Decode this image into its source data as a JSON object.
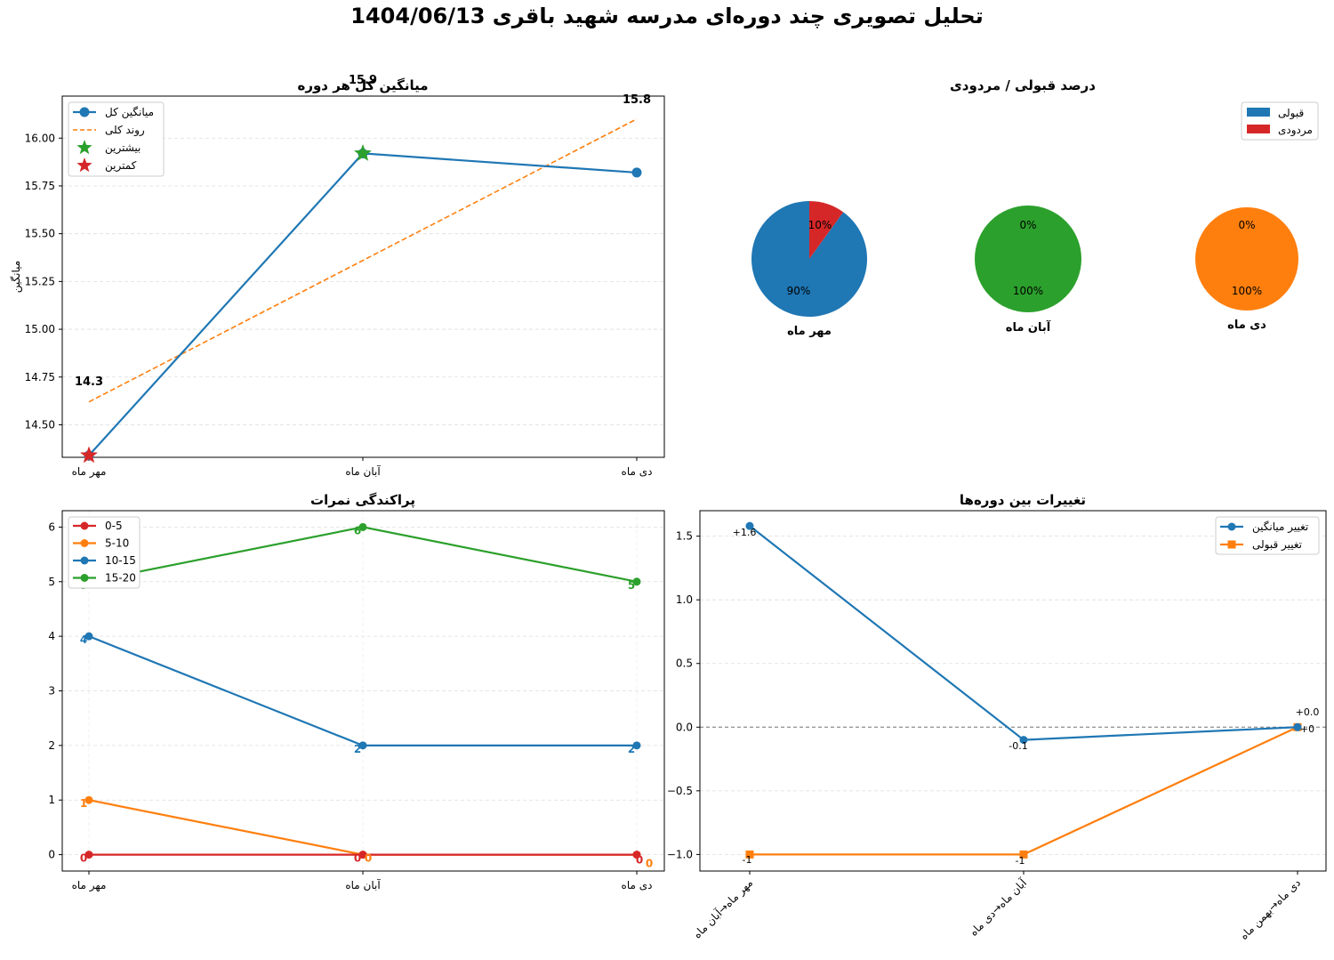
{
  "title": "تحلیل تصویری چند دوره‌ای مدرسه شهید باقری  1404/06/13",
  "colors": {
    "blue": "#1f77b4",
    "orange": "#ff7f0e",
    "green": "#2ca02c",
    "red": "#d62728",
    "grid": "#dddddd"
  },
  "chart_data": [
    {
      "type": "line",
      "title": "میانگین کل هر دوره",
      "ylabel": "میانگین",
      "xlabel": "",
      "categories": [
        "مهر ماه",
        "آبان ماه",
        "دی ماه"
      ],
      "ylim": [
        14.33,
        16.22
      ],
      "yticks": [
        "14.50",
        "14.75",
        "15.00",
        "15.25",
        "15.50",
        "15.75",
        "16.00"
      ],
      "series": [
        {
          "name": "میانگین کل",
          "values": [
            14.34,
            15.92,
            15.82
          ],
          "color": "#1f77b4"
        },
        {
          "name": "روند کلی",
          "values": [
            14.62,
            15.36,
            16.1
          ],
          "color": "#ff7f0e",
          "style": "dashed"
        }
      ],
      "markers": [
        {
          "name": "بیشترین",
          "index": 1,
          "value": 15.92,
          "color": "#2ca02c"
        },
        {
          "name": "کمترین",
          "index": 0,
          "value": 14.34,
          "color": "#d62728"
        }
      ],
      "data_labels": [
        "14.3",
        "15.9",
        "15.8"
      ],
      "grid": true,
      "legend": "top-left"
    },
    {
      "type": "pie",
      "title": "درصد قبولی /  مردودی",
      "legend_entries": [
        {
          "name": "قبولی",
          "color": "#1f77b4"
        },
        {
          "name": "مردودی",
          "color": "#d62728"
        }
      ],
      "legend": "top-right",
      "pies": [
        {
          "label": "مهر ماه",
          "slices": [
            {
              "name": "قبولی",
              "value": 90,
              "label": "90%",
              "color": "#1f77b4"
            },
            {
              "name": "مردودی",
              "value": 10,
              "label": "10%",
              "color": "#d62728"
            }
          ]
        },
        {
          "label": "آبان ماه",
          "slices": [
            {
              "name": "قبولی",
              "value": 100,
              "label": "100%",
              "color": "#2ca02c"
            },
            {
              "name": "مردودی",
              "value": 0,
              "label": "0%",
              "color": "#2ca02c"
            }
          ]
        },
        {
          "label": "دی ماه",
          "slices": [
            {
              "name": "قبولی",
              "value": 100,
              "label": "100%",
              "color": "#ff7f0e"
            },
            {
              "name": "مردودی",
              "value": 0,
              "label": "0%",
              "color": "#ff7f0e"
            }
          ]
        }
      ]
    },
    {
      "type": "line",
      "title": "پراکندگی نمرات",
      "categories": [
        "مهر ماه",
        "آبان ماه",
        "دی ماه"
      ],
      "ylim": [
        -0.3,
        6.3
      ],
      "yticks": [
        "0",
        "1",
        "2",
        "3",
        "4",
        "5",
        "6"
      ],
      "series": [
        {
          "name": "0-5",
          "values": [
            0,
            0,
            0
          ],
          "color": "#d62728",
          "labels": [
            "0",
            "0",
            "0"
          ]
        },
        {
          "name": "5-10",
          "values": [
            1,
            0,
            0
          ],
          "color": "#ff7f0e",
          "labels": [
            "1",
            "0",
            "0"
          ]
        },
        {
          "name": "10-15",
          "values": [
            4,
            2,
            2
          ],
          "color": "#1f77b4",
          "labels": [
            "4",
            "2",
            "2"
          ]
        },
        {
          "name": "15-20",
          "values": [
            5,
            6,
            5
          ],
          "color": "#2ca02c",
          "labels": [
            "5",
            "6",
            "5"
          ]
        }
      ],
      "grid": true,
      "legend": "top-left"
    },
    {
      "type": "line",
      "title": "تغییرات بین دوره‌ها",
      "categories": [
        "مهر ماه→آبان ماه",
        "آبان ماه→دی ماه",
        "دی ماه→بهمن ماه"
      ],
      "ylim": [
        -1.13,
        1.7
      ],
      "yticks": [
        "−1.0",
        "−0.5",
        "0.0",
        "0.5",
        "1.0",
        "1.5"
      ],
      "series": [
        {
          "name": "تغییر میانگین",
          "values": [
            1.58,
            -0.1,
            0.0
          ],
          "color": "#1f77b4",
          "labels": [
            "+1.6",
            "-0.1",
            "+0.0"
          ]
        },
        {
          "name": "تغییر قبولی",
          "values": [
            -1,
            -1,
            0
          ],
          "color": "#ff7f0e",
          "labels": [
            "-1",
            "-1",
            "+0"
          ]
        }
      ],
      "reference_line": 0,
      "grid": true,
      "legend": "top-right"
    }
  ]
}
